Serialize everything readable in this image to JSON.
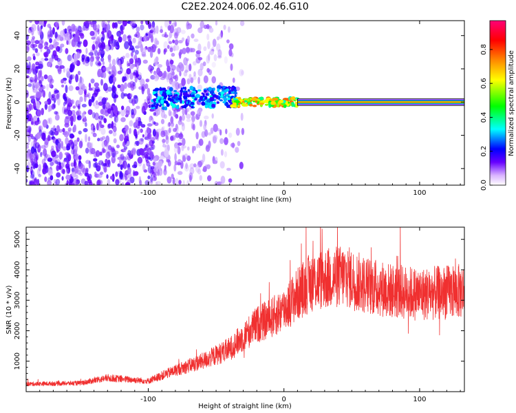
{
  "title": "C2E2.2024.006.02.46.G10",
  "chart_data": [
    {
      "type": "heatmap",
      "xlabel": "Height of straight line (km)",
      "ylabel": "Frequency (Hz)",
      "xlim": [
        -190,
        133
      ],
      "ylim": [
        -50,
        49
      ],
      "x_ticks": [
        -100,
        0,
        100
      ],
      "y_ticks": [
        -40,
        -20,
        0,
        20,
        40
      ],
      "colorbar": {
        "label": "Normalized spectral amplitude",
        "range": [
          0.0,
          0.97
        ],
        "ticks": [
          0.0,
          0.2,
          0.4,
          0.6,
          0.8
        ],
        "colormap": [
          "#ffffff",
          "#6600ff",
          "#0000ff",
          "#00ffff",
          "#00ff00",
          "#ffff00",
          "#ff8800",
          "#ff0000",
          "#ff0077"
        ]
      },
      "signal_band": {
        "frequency_hz": 0,
        "x_start": 10,
        "x_end": 133,
        "amplitude": 0.9
      },
      "noise_region": {
        "x_start": -190,
        "x_end": -35
      }
    },
    {
      "type": "line",
      "xlabel": "Height of straight line (km)",
      "ylabel": "SNR (10 * v/v)",
      "xlim": [
        -190,
        133
      ],
      "ylim": [
        0,
        5400
      ],
      "x_ticks": [
        -100,
        0,
        100
      ],
      "y_ticks": [
        1000,
        2000,
        3000,
        4000,
        5000
      ],
      "color": "#f03030",
      "envelope": {
        "x": [
          -190,
          -150,
          -130,
          -100,
          -80,
          -60,
          -40,
          -30,
          -20,
          -10,
          0,
          10,
          20,
          30,
          45,
          60,
          80,
          100,
          133
        ],
        "y": [
          250,
          280,
          450,
          350,
          700,
          1000,
          1400,
          1800,
          2200,
          2400,
          2700,
          3200,
          3600,
          3700,
          3800,
          3500,
          3300,
          3200,
          3300
        ]
      }
    }
  ]
}
